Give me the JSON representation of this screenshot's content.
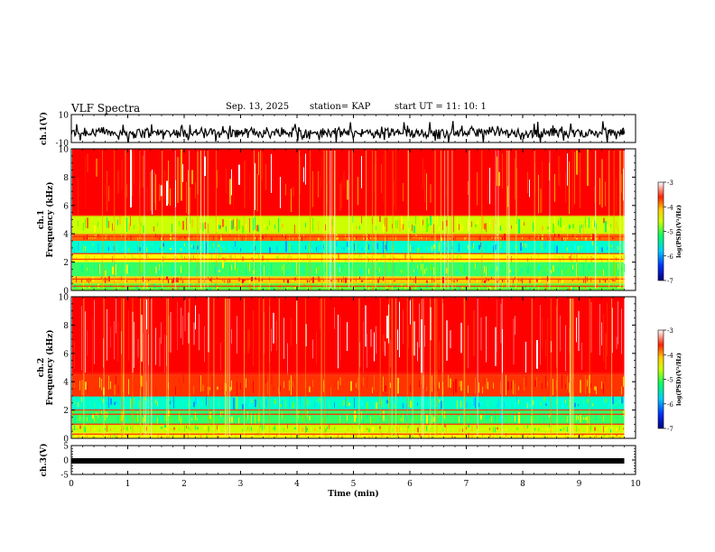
{
  "header": {
    "title": "VLF Spectra",
    "date": "Sep. 13, 2025",
    "station": "station= KAP",
    "start": "start  UT  =   11: 10: 1"
  },
  "chart_data": [
    {
      "type": "line",
      "name": "ch1-waveform",
      "ylabel": "ch.1(V)",
      "ylim": [
        -10,
        10
      ],
      "yticks": [
        10,
        -10
      ],
      "xlim": [
        0,
        10
      ],
      "x_end": 9.8,
      "baseline": -3.0,
      "noise_amplitude": 8
    },
    {
      "type": "heatmap",
      "name": "ch1-spectrogram",
      "ylabel": "ch.1\nFrequency (kHz)",
      "ylim": [
        0,
        10
      ],
      "yticks": [
        0,
        2,
        4,
        6,
        8,
        10
      ],
      "xlim": [
        0,
        10
      ],
      "x_end": 9.8,
      "bands_khz": [
        {
          "from": 0.0,
          "to": 0.5,
          "level": "green-yellow"
        },
        {
          "from": 0.5,
          "to": 1.0,
          "level": "yellow-red"
        },
        {
          "from": 1.0,
          "to": 2.0,
          "level": "green-cyan"
        },
        {
          "from": 2.0,
          "to": 2.6,
          "level": "yellow"
        },
        {
          "from": 2.6,
          "to": 3.5,
          "level": "cyan-green"
        },
        {
          "from": 3.5,
          "to": 4.0,
          "level": "orange"
        },
        {
          "from": 4.0,
          "to": 5.3,
          "level": "yellow-green"
        },
        {
          "from": 5.3,
          "to": 10.0,
          "level": "red"
        }
      ],
      "lines_khz": [
        0.3,
        0.8,
        2.2,
        2.6,
        3.8,
        5.3
      ],
      "colorbar": {
        "label": "log(PSD)(V²/Hz)",
        "ticks": [
          -3,
          -4,
          -5,
          -6,
          -7
        ]
      }
    },
    {
      "type": "heatmap",
      "name": "ch2-spectrogram",
      "ylabel": "ch.2\nFrequency (kHz)",
      "ylim": [
        0,
        10
      ],
      "yticks": [
        0,
        2,
        4,
        6,
        8,
        10
      ],
      "xlim": [
        0,
        10
      ],
      "x_end": 9.8,
      "bands_khz": [
        {
          "from": 0.0,
          "to": 0.4,
          "level": "yellow"
        },
        {
          "from": 0.4,
          "to": 1.0,
          "level": "yellow-green"
        },
        {
          "from": 1.0,
          "to": 2.0,
          "level": "green-cyan"
        },
        {
          "from": 2.0,
          "to": 3.0,
          "level": "cyan-green"
        },
        {
          "from": 3.0,
          "to": 4.5,
          "level": "orange-red"
        },
        {
          "from": 4.5,
          "to": 10.0,
          "level": "red-white"
        }
      ],
      "lines_khz": [
        0.3,
        1.0,
        1.7,
        2.0,
        3.0,
        4.6
      ],
      "colorbar": {
        "label": "log(PSD)(V²/Hz)",
        "ticks": [
          -3,
          -4,
          -5,
          -6,
          -7
        ]
      }
    },
    {
      "type": "line",
      "name": "ch3-waveform",
      "ylabel": "ch.3(V)",
      "ylim": [
        -5,
        5
      ],
      "yticks": [
        5,
        0,
        -5
      ],
      "xlim": [
        0,
        10
      ],
      "x_end": 9.8,
      "baseline": -0.3,
      "noise_amplitude": 0.4
    }
  ],
  "x_axis": {
    "label": "Time (min)",
    "ticks": [
      0,
      1,
      2,
      3,
      4,
      5,
      6,
      7,
      8,
      9,
      10
    ]
  }
}
